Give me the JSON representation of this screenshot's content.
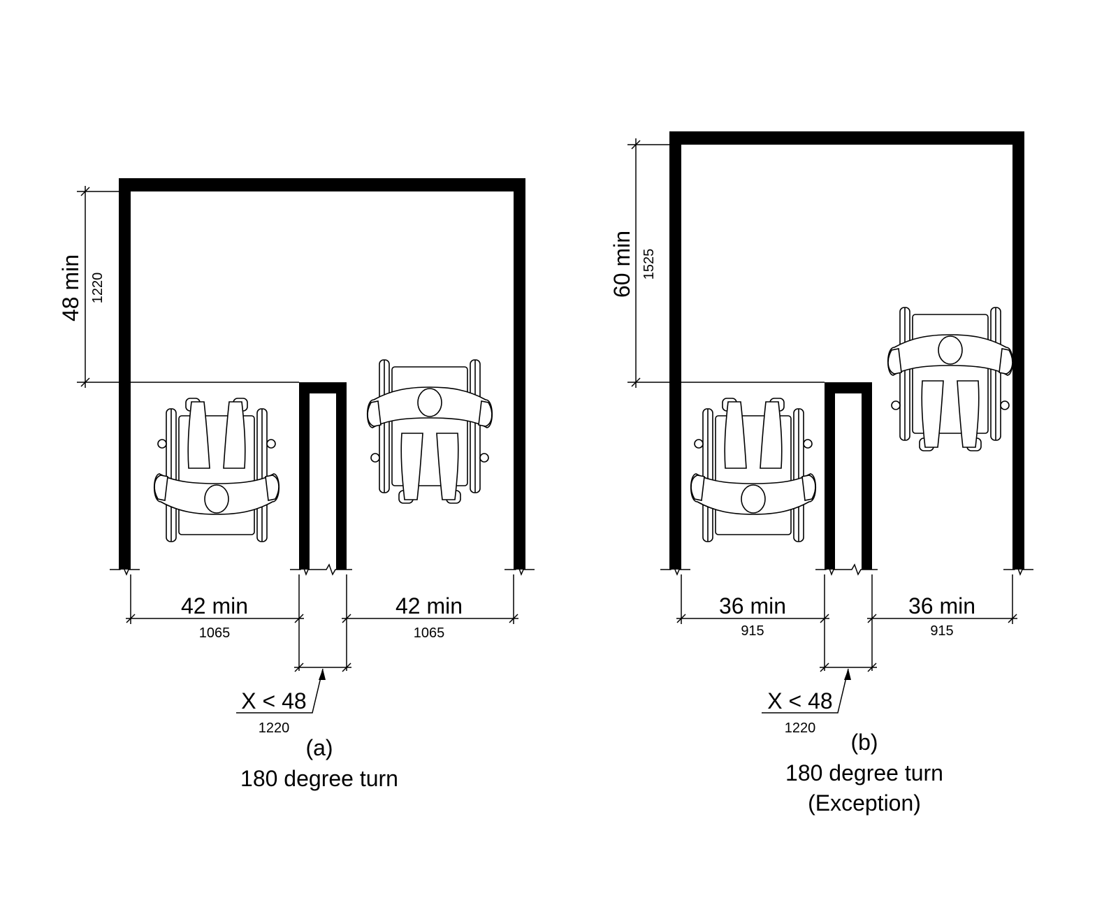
{
  "figures": [
    {
      "id": "a",
      "depth_label": "48 min",
      "depth_metric": "1220",
      "left_width_label": "42 min",
      "left_width_metric": "1065",
      "right_width_label": "42 min",
      "right_width_metric": "1065",
      "divider_label": "X < 48",
      "divider_metric": "1220",
      "caption_letter": "(a)",
      "caption_line1": "180 degree turn"
    },
    {
      "id": "b",
      "depth_label": "60 min",
      "depth_metric": "1525",
      "left_width_label": "36 min",
      "left_width_metric": "915",
      "right_width_label": "36 min",
      "right_width_metric": "915",
      "divider_label": "X < 48",
      "divider_metric": "1220",
      "caption_letter": "(b)",
      "caption_line1": "180 degree turn",
      "caption_line2": "(Exception)"
    }
  ]
}
